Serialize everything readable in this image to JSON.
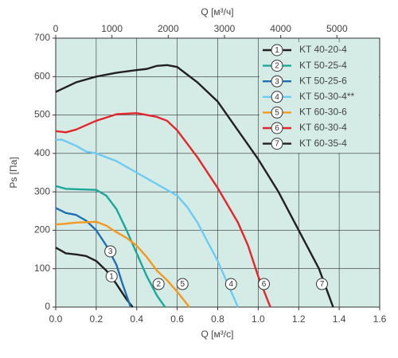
{
  "chart_data": {
    "type": "line",
    "xlabel": "Q [м³/с]",
    "x2label": "Q [м³/ч]",
    "ylabel": "Ps [Па]",
    "xlim": [
      0,
      1.6
    ],
    "xticks": [
      {
        "value": 0,
        "label": "0.0"
      },
      0.2,
      0.4,
      0.6,
      0.8,
      {
        "value": 1,
        "label": "1.0"
      },
      1.2,
      1.4,
      1.6
    ],
    "x2lim": [
      0,
      5760
    ],
    "x2ticks": [
      0,
      1000,
      2000,
      3000,
      4000,
      5000
    ],
    "ylim": [
      0,
      700
    ],
    "yticks": [
      0,
      100,
      200,
      300,
      400,
      500,
      600,
      700
    ],
    "grid": true,
    "background": "#d5ece6",
    "legend": "top-right",
    "series": [
      {
        "name": "KT 40-20-4",
        "label": "1",
        "color": "#231f20",
        "x": [
          0,
          0.05,
          0.1,
          0.15,
          0.2,
          0.25,
          0.3,
          0.35,
          0.38
        ],
        "values": [
          155,
          140,
          137,
          133,
          120,
          95,
          60,
          20,
          0
        ],
        "label_x": 0.276,
        "label_y": 80
      },
      {
        "name": "KT 50-25-4",
        "label": "2",
        "color": "#1ba89a",
        "x": [
          0,
          0.05,
          0.1,
          0.2,
          0.25,
          0.3,
          0.35,
          0.4,
          0.45,
          0.5,
          0.54
        ],
        "values": [
          315,
          308,
          307,
          305,
          290,
          255,
          200,
          140,
          80,
          30,
          0
        ],
        "label_x": 0.508,
        "label_y": 60
      },
      {
        "name": "KT 50-25-6",
        "label": "3",
        "color": "#1f6fb5",
        "x": [
          0,
          0.05,
          0.1,
          0.15,
          0.2,
          0.25,
          0.3,
          0.33,
          0.37
        ],
        "values": [
          258,
          245,
          240,
          225,
          200,
          160,
          110,
          60,
          0
        ],
        "label_x": 0.27,
        "label_y": 145
      },
      {
        "name": "KT 50-30-4**",
        "label": "4",
        "color": "#6ccbf2",
        "x": [
          0,
          0.03,
          0.1,
          0.15,
          0.2,
          0.3,
          0.4,
          0.5,
          0.6,
          0.65,
          0.7,
          0.75,
          0.8,
          0.85,
          0.9
        ],
        "values": [
          435,
          436,
          420,
          405,
          400,
          380,
          350,
          320,
          290,
          260,
          220,
          170,
          120,
          60,
          0
        ],
        "label_x": 0.866,
        "label_y": 60
      },
      {
        "name": "KT 60-30-6",
        "label": "5",
        "color": "#f39a1e",
        "x": [
          0,
          0.05,
          0.1,
          0.2,
          0.25,
          0.3,
          0.35,
          0.4,
          0.45,
          0.5,
          0.55,
          0.6,
          0.66
        ],
        "values": [
          215,
          217,
          220,
          222,
          212,
          195,
          180,
          160,
          130,
          95,
          70,
          40,
          0
        ],
        "label_x": 0.626,
        "label_y": 60
      },
      {
        "name": "KT 60-30-4",
        "label": "6",
        "color": "#e3262b",
        "x": [
          0,
          0.05,
          0.1,
          0.2,
          0.3,
          0.4,
          0.5,
          0.55,
          0.6,
          0.7,
          0.8,
          0.9,
          0.95,
          1.0,
          1.03,
          1.06
        ],
        "values": [
          458,
          455,
          462,
          485,
          502,
          505,
          495,
          485,
          460,
          390,
          310,
          220,
          160,
          80,
          40,
          0
        ],
        "label_x": 1.028,
        "label_y": 60
      },
      {
        "name": "KT 60-35-4",
        "label": "7",
        "color": "#231f20",
        "x": [
          0,
          0.1,
          0.2,
          0.3,
          0.4,
          0.45,
          0.5,
          0.55,
          0.6,
          0.65,
          0.7,
          0.8,
          0.9,
          1.0,
          1.1,
          1.2,
          1.3,
          1.37
        ],
        "values": [
          560,
          585,
          600,
          610,
          617,
          620,
          628,
          630,
          625,
          605,
          585,
          535,
          460,
          385,
          300,
          200,
          100,
          0
        ],
        "label_x": 1.315,
        "label_y": 60
      }
    ]
  }
}
